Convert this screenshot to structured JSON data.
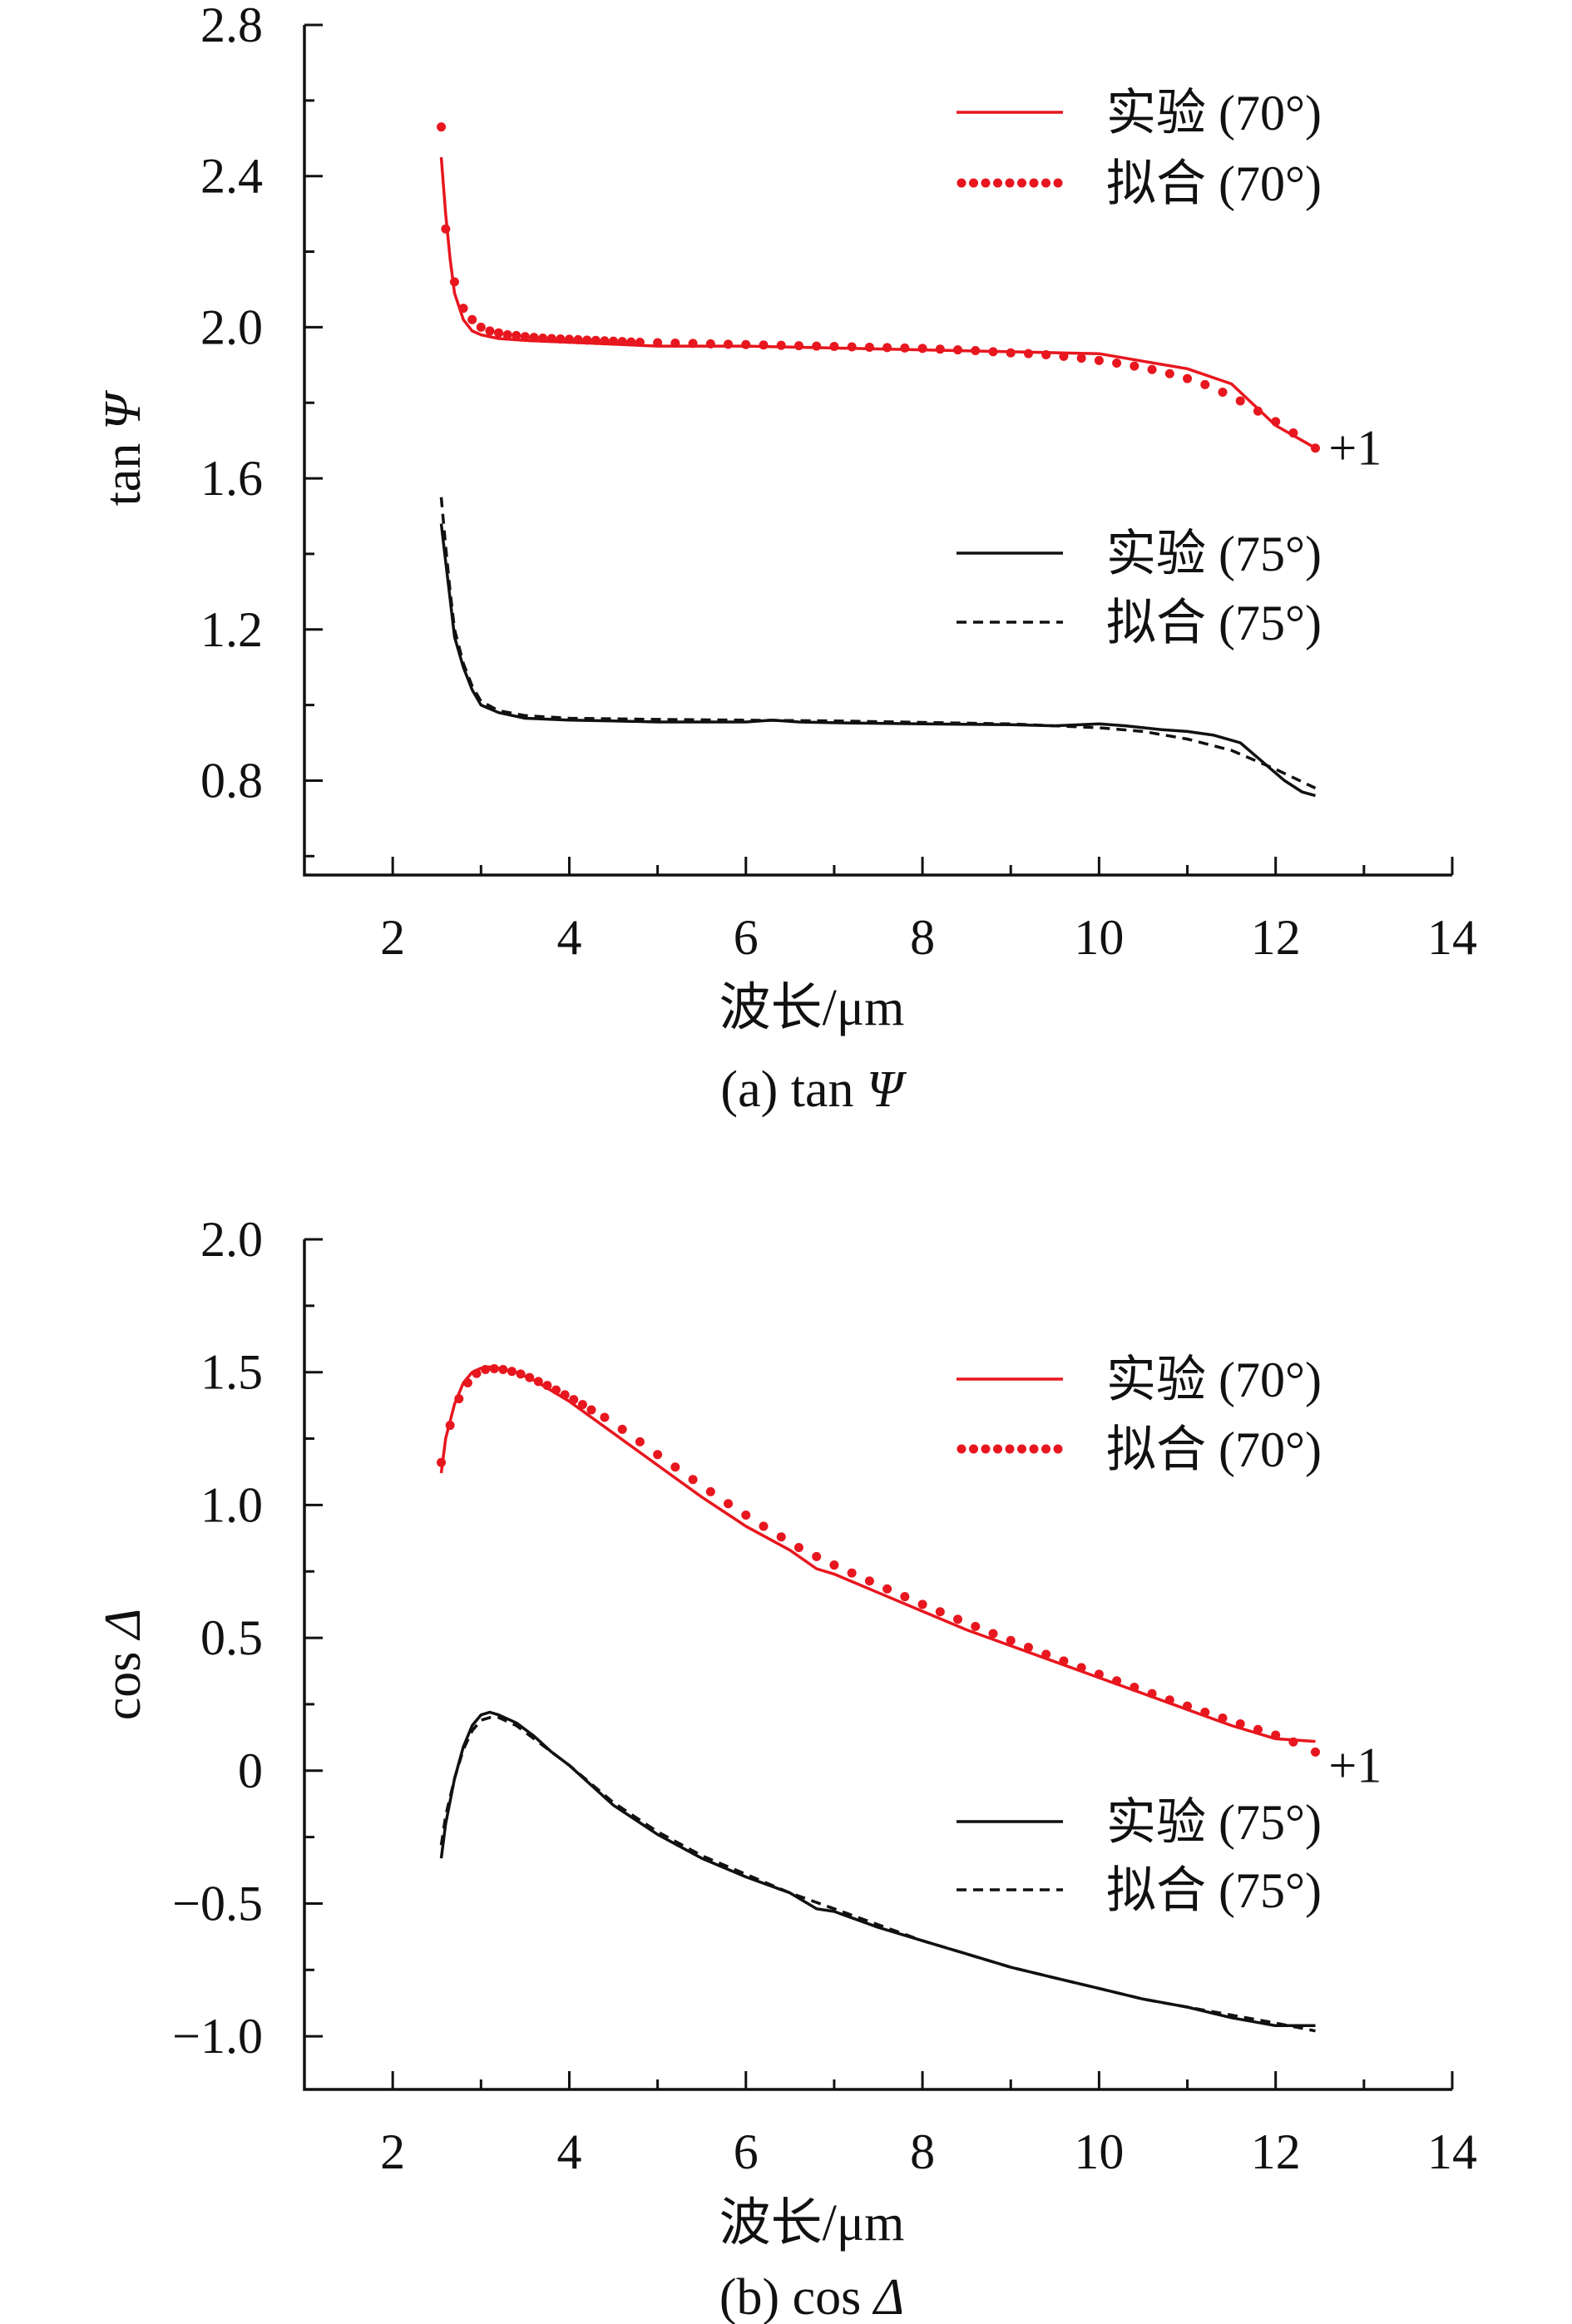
{
  "colors": {
    "red": "#e8161e",
    "black": "#111111"
  },
  "charts": [
    {
      "caption_prefix": "(a) tan ",
      "caption_symbol": "Ψ",
      "ylabel_prefix": "tan ",
      "ylabel_symbol": "Ψ",
      "xlabel": "波长/μm",
      "offset_label": "+1",
      "xlim": [
        1,
        14
      ],
      "ylim": [
        0.55,
        2.8
      ],
      "xticks": [
        2,
        4,
        6,
        8,
        10,
        12,
        14
      ],
      "xtick_labels": [
        "2",
        "4",
        "6",
        "8",
        "10",
        "12",
        "14"
      ],
      "yticks": [
        0.8,
        1.2,
        1.6,
        2.0,
        2.4,
        2.8
      ],
      "ytick_labels": [
        "0.8",
        "1.2",
        "1.6",
        "2.0",
        "2.4",
        "2.8"
      ],
      "legend": [
        {
          "label": "实验 (70°)",
          "style": "red-solid"
        },
        {
          "label": "拟合 (70°)",
          "style": "red-dotted"
        },
        {
          "label": "实验 (75°)",
          "style": "black-solid"
        },
        {
          "label": "拟合 (75°)",
          "style": "black-dashed"
        }
      ]
    },
    {
      "caption_prefix": "(b) cos ",
      "caption_symbol": "Δ",
      "ylabel_prefix": "cos ",
      "ylabel_symbol": "Δ",
      "xlabel": "波长/μm",
      "offset_label": "+1",
      "xlim": [
        1,
        14
      ],
      "ylim": [
        -1.2,
        2.0
      ],
      "xticks": [
        2,
        4,
        6,
        8,
        10,
        12,
        14
      ],
      "xtick_labels": [
        "2",
        "4",
        "6",
        "8",
        "10",
        "12",
        "14"
      ],
      "yticks": [
        -1.0,
        -0.5,
        0,
        0.5,
        1.0,
        1.5,
        2.0
      ],
      "ytick_labels": [
        "−1.0",
        "−0.5",
        "0",
        "0.5",
        "1.0",
        "1.5",
        "2.0"
      ],
      "legend": [
        {
          "label": "实验 (70°)",
          "style": "red-solid"
        },
        {
          "label": "拟合 (70°)",
          "style": "red-dotted"
        },
        {
          "label": "实验 (75°)",
          "style": "black-solid"
        },
        {
          "label": "拟合 (75°)",
          "style": "black-dashed"
        }
      ]
    }
  ],
  "chart_data": [
    {
      "type": "line",
      "title": "(a) tan Ψ",
      "xlabel": "波长/μm",
      "ylabel": "tan Ψ",
      "xlim": [
        1,
        14
      ],
      "ylim": [
        0.55,
        2.8
      ],
      "series": [
        {
          "name": "实验 (70°)",
          "style": "solid",
          "color": "#e8161e",
          "x": [
            2.55,
            2.6,
            2.65,
            2.7,
            2.8,
            2.9,
            3.0,
            3.2,
            3.5,
            4.0,
            4.5,
            5.0,
            6.0,
            7.0,
            8.0,
            9.0,
            10.0,
            10.5,
            11.0,
            11.5,
            12.0,
            12.45
          ],
          "y": [
            2.45,
            2.3,
            2.18,
            2.09,
            2.02,
            1.99,
            1.98,
            1.97,
            1.965,
            1.96,
            1.955,
            1.95,
            1.95,
            1.945,
            1.94,
            1.935,
            1.93,
            1.91,
            1.89,
            1.85,
            1.74,
            1.68
          ]
        },
        {
          "name": "拟合 (70°)",
          "style": "dotted",
          "color": "#e8161e",
          "x": [
            2.55,
            2.6,
            2.7,
            2.8,
            2.9,
            3.0,
            3.1,
            3.2,
            3.3,
            3.4,
            3.5,
            3.6,
            3.7,
            3.8,
            3.9,
            4.0,
            4.1,
            4.2,
            4.3,
            4.4,
            4.5,
            4.6,
            4.7,
            4.8,
            5.0,
            5.2,
            5.4,
            5.6,
            5.8,
            6.0,
            6.2,
            6.4,
            6.6,
            6.8,
            7.0,
            7.2,
            7.4,
            7.6,
            7.8,
            8.0,
            8.2,
            8.4,
            8.6,
            8.8,
            9.0,
            9.2,
            9.4,
            9.6,
            9.8,
            10.0,
            10.2,
            10.4,
            10.6,
            10.8,
            11.0,
            11.2,
            11.4,
            11.6,
            11.8,
            12.0,
            12.2,
            12.45
          ],
          "y": [
            2.53,
            2.26,
            2.12,
            2.05,
            2.02,
            2.0,
            1.99,
            1.985,
            1.98,
            1.978,
            1.975,
            1.973,
            1.971,
            1.97,
            1.969,
            1.968,
            1.967,
            1.966,
            1.965,
            1.964,
            1.963,
            1.962,
            1.961,
            1.96,
            1.959,
            1.958,
            1.957,
            1.956,
            1.955,
            1.954,
            1.953,
            1.952,
            1.951,
            1.95,
            1.949,
            1.948,
            1.947,
            1.946,
            1.945,
            1.944,
            1.942,
            1.94,
            1.938,
            1.935,
            1.932,
            1.93,
            1.927,
            1.923,
            1.918,
            1.912,
            1.905,
            1.897,
            1.888,
            1.877,
            1.864,
            1.848,
            1.828,
            1.805,
            1.778,
            1.75,
            1.72,
            1.68
          ]
        },
        {
          "name": "实验 (75°)",
          "style": "solid",
          "color": "#111111",
          "x": [
            2.55,
            2.6,
            2.65,
            2.7,
            2.8,
            2.9,
            3.0,
            3.2,
            3.5,
            4.0,
            4.5,
            5.0,
            6.0,
            6.3,
            6.6,
            7.0,
            8.0,
            9.0,
            9.5,
            10.0,
            10.3,
            10.7,
            11.0,
            11.3,
            11.6,
            11.9,
            12.1,
            12.3,
            12.45
          ],
          "y": [
            1.48,
            1.38,
            1.28,
            1.18,
            1.1,
            1.04,
            1.0,
            0.98,
            0.965,
            0.96,
            0.958,
            0.955,
            0.955,
            0.96,
            0.955,
            0.953,
            0.95,
            0.948,
            0.945,
            0.95,
            0.945,
            0.935,
            0.93,
            0.92,
            0.9,
            0.84,
            0.8,
            0.77,
            0.76
          ]
        },
        {
          "name": "拟合 (75°)",
          "style": "dashed",
          "color": "#111111",
          "x": [
            2.55,
            2.6,
            2.65,
            2.7,
            2.8,
            2.9,
            3.0,
            3.2,
            3.5,
            4.0,
            5.0,
            6.0,
            7.0,
            8.0,
            9.0,
            10.0,
            10.5,
            11.0,
            11.5,
            12.0,
            12.45
          ],
          "y": [
            1.55,
            1.42,
            1.3,
            1.2,
            1.11,
            1.05,
            1.01,
            0.985,
            0.972,
            0.965,
            0.962,
            0.96,
            0.958,
            0.954,
            0.95,
            0.94,
            0.93,
            0.91,
            0.88,
            0.83,
            0.78
          ]
        }
      ],
      "annotations": [
        {
          "text": "+1",
          "x": 12.6,
          "y": 1.68
        }
      ]
    },
    {
      "type": "line",
      "title": "(b) cos Δ",
      "xlabel": "波长/μm",
      "ylabel": "cos Δ",
      "xlim": [
        1,
        14
      ],
      "ylim": [
        -1.2,
        2.0
      ],
      "series": [
        {
          "name": "实验 (70°)",
          "style": "solid",
          "color": "#e8161e",
          "x": [
            2.55,
            2.6,
            2.7,
            2.8,
            2.9,
            3.0,
            3.1,
            3.2,
            3.4,
            3.6,
            3.8,
            4.0,
            4.5,
            5.0,
            5.5,
            6.0,
            6.5,
            6.8,
            7.0,
            7.5,
            8.0,
            8.5,
            9.0,
            9.5,
            10.0,
            10.5,
            11.0,
            11.5,
            12.0,
            12.45
          ],
          "y": [
            1.12,
            1.25,
            1.38,
            1.46,
            1.5,
            1.515,
            1.52,
            1.515,
            1.5,
            1.47,
            1.43,
            1.39,
            1.27,
            1.15,
            1.03,
            0.92,
            0.83,
            0.76,
            0.74,
            0.67,
            0.6,
            0.53,
            0.47,
            0.41,
            0.35,
            0.29,
            0.23,
            0.17,
            0.12,
            0.11
          ]
        },
        {
          "name": "拟合 (70°)",
          "style": "dotted",
          "color": "#e8161e",
          "x": [
            2.55,
            2.65,
            2.75,
            2.85,
            2.95,
            3.05,
            3.15,
            3.25,
            3.35,
            3.45,
            3.55,
            3.65,
            3.75,
            3.85,
            3.95,
            4.05,
            4.15,
            4.25,
            4.4,
            4.6,
            4.8,
            5.0,
            5.2,
            5.4,
            5.6,
            5.8,
            6.0,
            6.2,
            6.4,
            6.6,
            6.8,
            7.0,
            7.2,
            7.4,
            7.6,
            7.8,
            8.0,
            8.2,
            8.4,
            8.6,
            8.8,
            9.0,
            9.2,
            9.4,
            9.6,
            9.8,
            10.0,
            10.2,
            10.4,
            10.6,
            10.8,
            11.0,
            11.2,
            11.4,
            11.6,
            11.8,
            12.0,
            12.2,
            12.45
          ],
          "y": [
            1.16,
            1.3,
            1.4,
            1.46,
            1.495,
            1.51,
            1.513,
            1.51,
            1.503,
            1.493,
            1.48,
            1.465,
            1.45,
            1.433,
            1.415,
            1.397,
            1.378,
            1.358,
            1.33,
            1.285,
            1.238,
            1.19,
            1.143,
            1.096,
            1.05,
            1.005,
            0.962,
            0.92,
            0.88,
            0.84,
            0.806,
            0.774,
            0.744,
            0.714,
            0.684,
            0.655,
            0.626,
            0.598,
            0.57,
            0.543,
            0.516,
            0.49,
            0.464,
            0.438,
            0.413,
            0.388,
            0.363,
            0.338,
            0.314,
            0.29,
            0.266,
            0.243,
            0.22,
            0.198,
            0.176,
            0.155,
            0.134,
            0.108,
            0.07
          ]
        },
        {
          "name": "实验 (75°)",
          "style": "solid",
          "color": "#111111",
          "x": [
            2.55,
            2.6,
            2.7,
            2.8,
            2.9,
            3.0,
            3.1,
            3.2,
            3.4,
            3.6,
            3.8,
            4.0,
            4.5,
            5.0,
            5.5,
            6.0,
            6.5,
            6.8,
            7.0,
            7.5,
            8.0,
            8.5,
            9.0,
            9.5,
            10.0,
            10.5,
            11.0,
            11.5,
            12.0,
            12.45
          ],
          "y": [
            -0.33,
            -0.2,
            -0.03,
            0.09,
            0.17,
            0.21,
            0.22,
            0.21,
            0.18,
            0.13,
            0.07,
            0.02,
            -0.13,
            -0.24,
            -0.33,
            -0.4,
            -0.46,
            -0.52,
            -0.53,
            -0.59,
            -0.64,
            -0.69,
            -0.74,
            -0.78,
            -0.82,
            -0.86,
            -0.89,
            -0.93,
            -0.96,
            -0.96
          ]
        },
        {
          "name": "拟合 (75°)",
          "style": "dashed",
          "color": "#111111",
          "x": [
            2.55,
            2.6,
            2.7,
            2.8,
            2.9,
            3.0,
            3.1,
            3.2,
            3.4,
            3.6,
            3.8,
            4.0,
            4.5,
            5.0,
            5.5,
            6.0,
            6.5,
            7.0,
            7.5,
            8.0,
            8.5,
            9.0,
            9.5,
            10.0,
            10.5,
            11.0,
            11.5,
            12.0,
            12.45
          ],
          "y": [
            -0.28,
            -0.17,
            -0.03,
            0.08,
            0.15,
            0.19,
            0.2,
            0.2,
            0.17,
            0.12,
            0.07,
            0.02,
            -0.12,
            -0.23,
            -0.32,
            -0.39,
            -0.46,
            -0.52,
            -0.58,
            -0.64,
            -0.69,
            -0.74,
            -0.78,
            -0.82,
            -0.86,
            -0.89,
            -0.92,
            -0.95,
            -0.98
          ]
        }
      ],
      "annotations": [
        {
          "text": "+1",
          "x": 12.6,
          "y": 0.02
        }
      ]
    }
  ]
}
